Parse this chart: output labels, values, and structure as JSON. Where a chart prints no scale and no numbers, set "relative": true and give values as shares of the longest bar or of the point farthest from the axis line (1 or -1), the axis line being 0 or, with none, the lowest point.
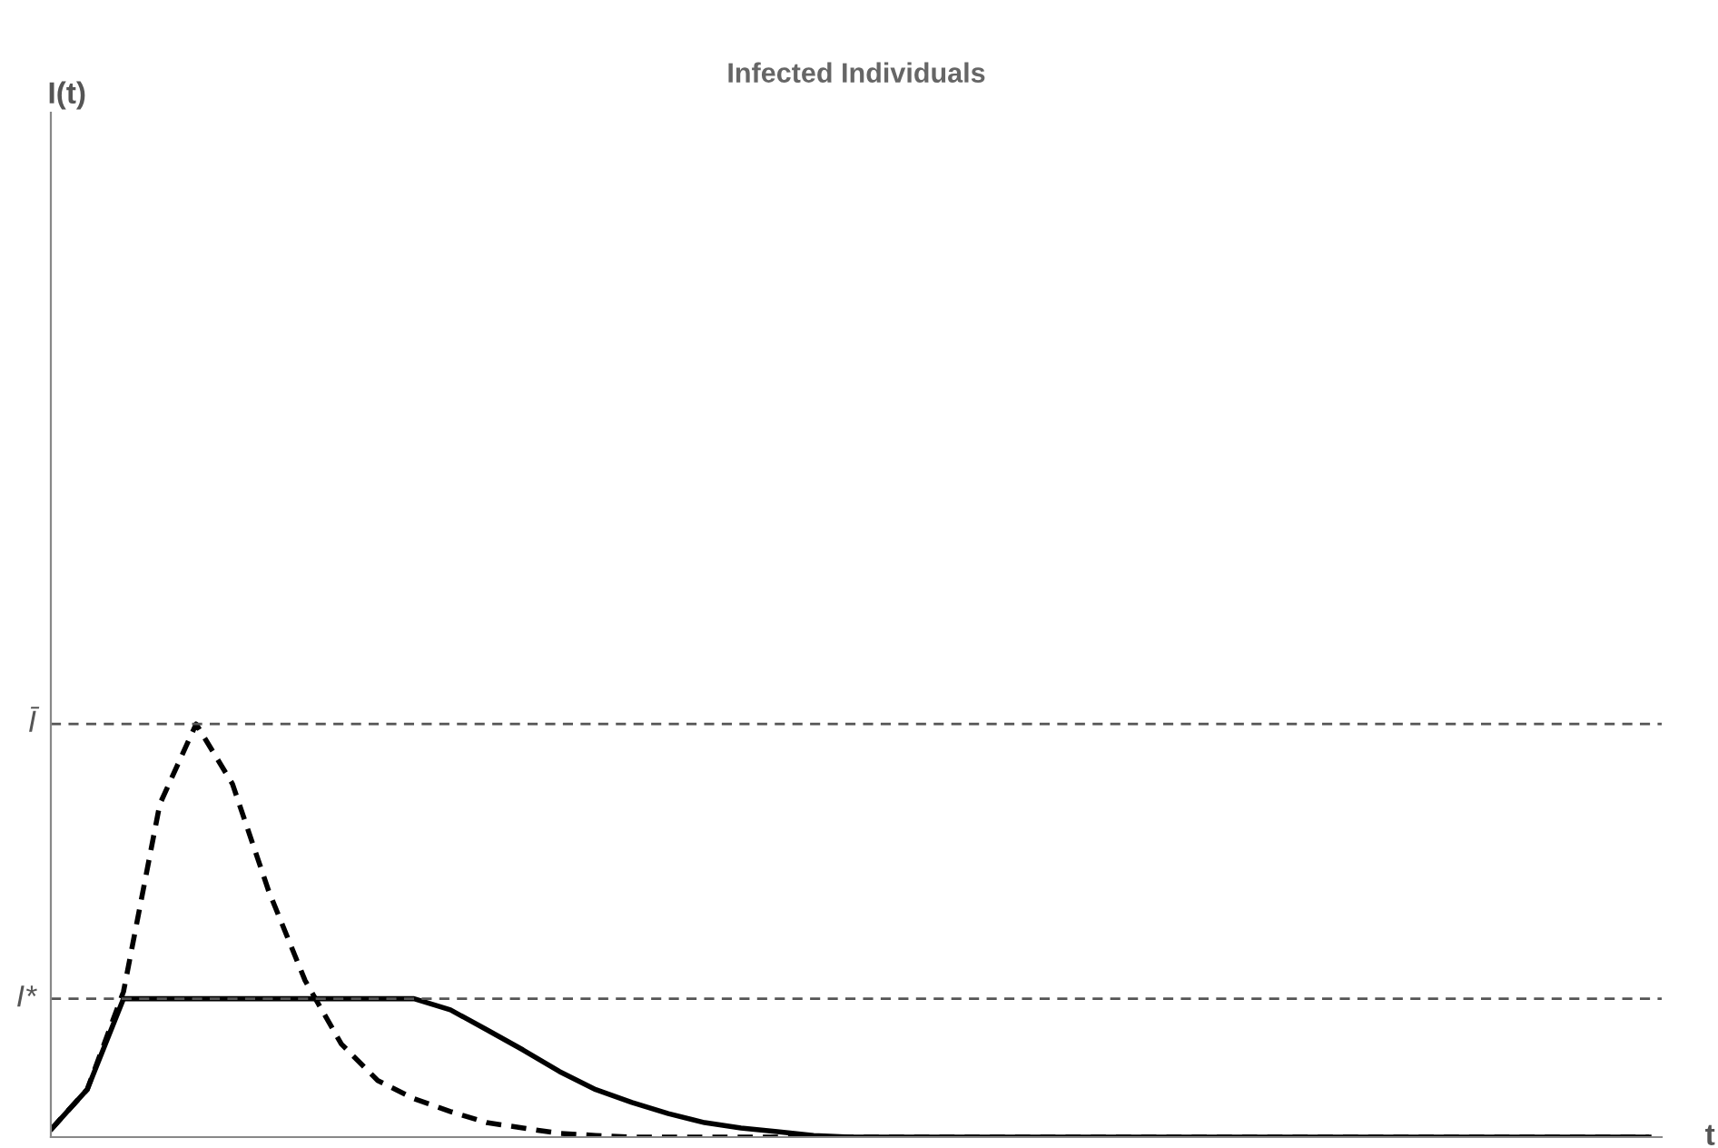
{
  "chart_data": {
    "type": "line",
    "title": "Infected Individuals",
    "xlabel": "t",
    "annotations": [
      "I(t)"
    ],
    "relative": true,
    "legend": false,
    "marker": "none",
    "categories": [
      null,
      null,
      null,
      null,
      null,
      null,
      null,
      null,
      null,
      null,
      null,
      null,
      null,
      null,
      null,
      null,
      null,
      null,
      null,
      null,
      null,
      null,
      null,
      null,
      null,
      null,
      null,
      null,
      null,
      null,
      null,
      null,
      null,
      null,
      null,
      null,
      null,
      null,
      null,
      null,
      null,
      null,
      null,
      null,
      null
    ],
    "series": [
      {
        "color": "#000000",
        "line_style": "solid",
        "values": [
          0.018,
          0.115,
          0.335,
          0.335,
          0.335,
          0.335,
          0.335,
          0.335,
          0.335,
          0.335,
          0.335,
          0.308,
          0.26,
          0.211,
          0.159,
          0.115,
          0.084,
          0.057,
          0.035,
          0.022,
          0.013,
          0.004,
          0,
          0,
          0,
          0,
          0,
          0,
          0,
          0,
          0,
          0,
          0,
          0,
          0,
          0,
          0,
          0,
          0,
          0,
          0,
          0,
          0,
          0,
          0
        ]
      },
      {
        "color": "#000000",
        "line_style": "dashed",
        "values": [
          0.018,
          0.115,
          0.352,
          0.806,
          1.0,
          0.855,
          0.595,
          0.379,
          0.225,
          0.137,
          0.093,
          0.062,
          0.035,
          0.022,
          0.009,
          0.004,
          0,
          0,
          0,
          0,
          0,
          0,
          0,
          0,
          0,
          0,
          0,
          0,
          0,
          0,
          0,
          0,
          0,
          0,
          0,
          0,
          0,
          0,
          0,
          0,
          0,
          0,
          0,
          0,
          0
        ]
      }
    ],
    "ref_lines": [
      {
        "axis": "y",
        "value": 1.0,
        "label": "Ī",
        "color": "#555555",
        "line_style": "dashed"
      },
      {
        "axis": "y",
        "value": 0.335,
        "label": "I*",
        "color": "#555555",
        "line_style": "dashed"
      }
    ]
  }
}
